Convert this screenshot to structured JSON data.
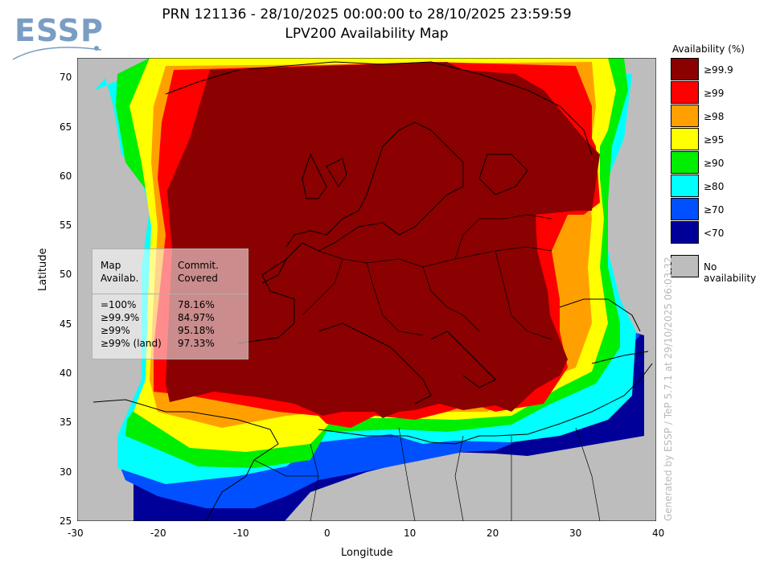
{
  "header": {
    "logo_text": "ESSP",
    "title_line1": "PRN 121136 - 28/10/2025 00:00:00 to 28/10/2025 23:59:59",
    "title_line2": "LPV200 Availability Map"
  },
  "map": {
    "x_label": "Longitude",
    "y_label": "Latitude",
    "x_ticks": [
      "-30",
      "-20",
      "-10",
      "0",
      "10",
      "20",
      "30",
      "40"
    ],
    "y_ticks": [
      "70",
      "65",
      "60",
      "55",
      "50",
      "45",
      "40",
      "35",
      "30",
      "25"
    ],
    "lon_range": [
      -30,
      40
    ],
    "lat_range": [
      25,
      72
    ],
    "background_color": "#bdbdbd",
    "coastline_color": "#000000"
  },
  "legend": {
    "title": "Availability (%)",
    "items": [
      {
        "label": "≥99.9",
        "color": "#8b0000"
      },
      {
        "label": "≥99",
        "color": "#ff0000"
      },
      {
        "label": "≥98",
        "color": "#ffa000"
      },
      {
        "label": "≥95",
        "color": "#ffff00"
      },
      {
        "label": "≥90",
        "color": "#00ee00"
      },
      {
        "label": "≥80",
        "color": "#00ffff"
      },
      {
        "label": "≥70",
        "color": "#0050ff"
      },
      {
        "label": "<70",
        "color": "#000099"
      }
    ],
    "no_availability": {
      "label": "No availability",
      "color": "#bdbdbd"
    }
  },
  "stats": {
    "col1_header_1": "Map",
    "col1_header_2": "Availab.",
    "col2_header_1": "Commit.",
    "col2_header_2": "Covered",
    "rows": [
      {
        "label": "=100%",
        "value": "78.16%"
      },
      {
        "label": "≥99.9%",
        "value": "84.97%"
      },
      {
        "label": "≥99%",
        "value": "95.18%"
      },
      {
        "label": "≥99% (land)",
        "value": "97.33%"
      }
    ]
  },
  "watermark": "Generated by ESSP / TeP 5.7.1 at 29/10/2025 06:03:32"
}
